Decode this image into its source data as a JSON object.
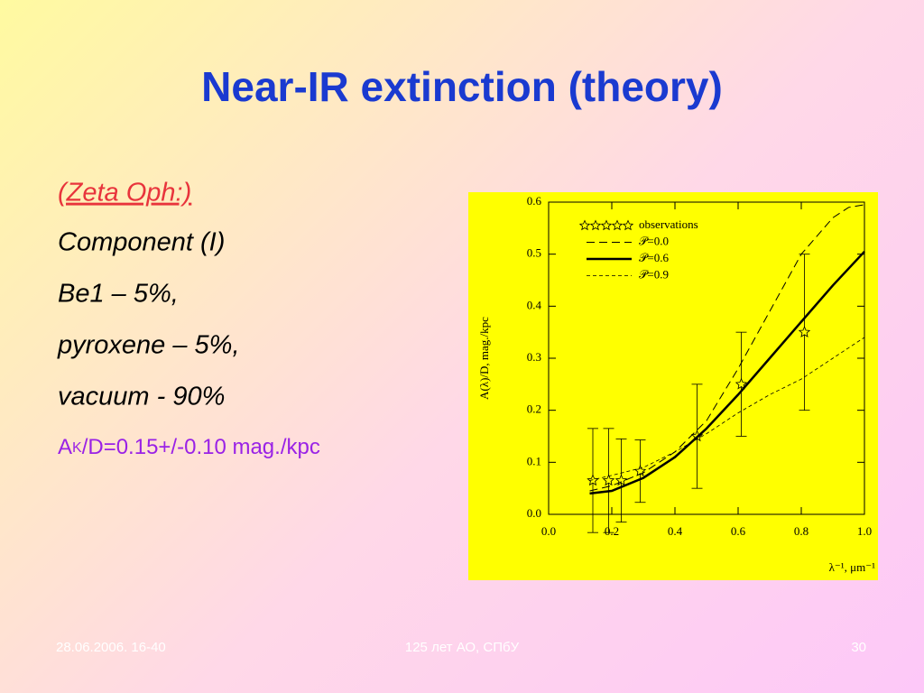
{
  "slide": {
    "title": "Near-IR extinction (theory)",
    "lines": [
      "(Zeta Oph:)",
      "Component (I)",
      "Be1 – 5%,",
      "pyroxene – 5%,",
      "vacuum  - 90%"
    ],
    "extinction": {
      "main": "A",
      "sub": "K",
      "rest": "/D=0.15+/-0.10 mag./kpc"
    },
    "footer": {
      "date": "28.06.2006. 16-40",
      "center": "125 лет АО, СПбУ",
      "page": "30"
    }
  },
  "chart_data": {
    "type": "line",
    "xlabel": "λ⁻¹,  μm⁻¹",
    "ylabel": "A(λ)/D,  mag./kpc",
    "xlim": [
      0,
      1
    ],
    "ylim": [
      0,
      0.6
    ],
    "xticks": [
      {
        "value": 0,
        "label": "0.0"
      },
      0.2,
      0.4,
      0.6,
      0.8,
      {
        "value": 1,
        "label": "1.0"
      }
    ],
    "yticks": [
      {
        "value": 0,
        "label": "0.0"
      },
      0.1,
      0.2,
      0.3,
      0.4,
      0.5,
      0.6
    ],
    "background": "#ffff00",
    "series": [
      {
        "name": "observations",
        "style": "star",
        "color": "#000000",
        "x": [
          0.14,
          0.19,
          0.23,
          0.29,
          0.47,
          0.61,
          0.81
        ],
        "values": [
          0.065,
          0.065,
          0.065,
          0.083,
          0.15,
          0.25,
          0.35
        ],
        "errors": [
          0.1,
          0.1,
          0.08,
          0.06,
          0.1,
          0.1,
          0.15
        ]
      },
      {
        "name": "𝒫=0.0",
        "style": "dashed",
        "color": "#000000",
        "x": [
          0.13,
          0.2,
          0.3,
          0.4,
          0.5,
          0.6,
          0.7,
          0.8,
          0.9,
          0.95,
          1.0
        ],
        "values": [
          0.045,
          0.055,
          0.08,
          0.12,
          0.18,
          0.28,
          0.39,
          0.5,
          0.57,
          0.59,
          0.595
        ]
      },
      {
        "name": "𝒫=0.6",
        "style": "solid",
        "color": "#000000",
        "x": [
          0.13,
          0.2,
          0.3,
          0.4,
          0.5,
          0.6,
          0.7,
          0.8,
          0.9,
          1.0
        ],
        "values": [
          0.04,
          0.045,
          0.07,
          0.11,
          0.165,
          0.23,
          0.3,
          0.37,
          0.44,
          0.505
        ]
      },
      {
        "name": "𝒫=0.9",
        "style": "dotted",
        "color": "#000000",
        "x": [
          0.13,
          0.2,
          0.3,
          0.4,
          0.5,
          0.6,
          0.7,
          0.8,
          0.9,
          1.0
        ],
        "values": [
          0.065,
          0.075,
          0.09,
          0.12,
          0.155,
          0.195,
          0.23,
          0.26,
          0.3,
          0.34
        ]
      }
    ]
  }
}
